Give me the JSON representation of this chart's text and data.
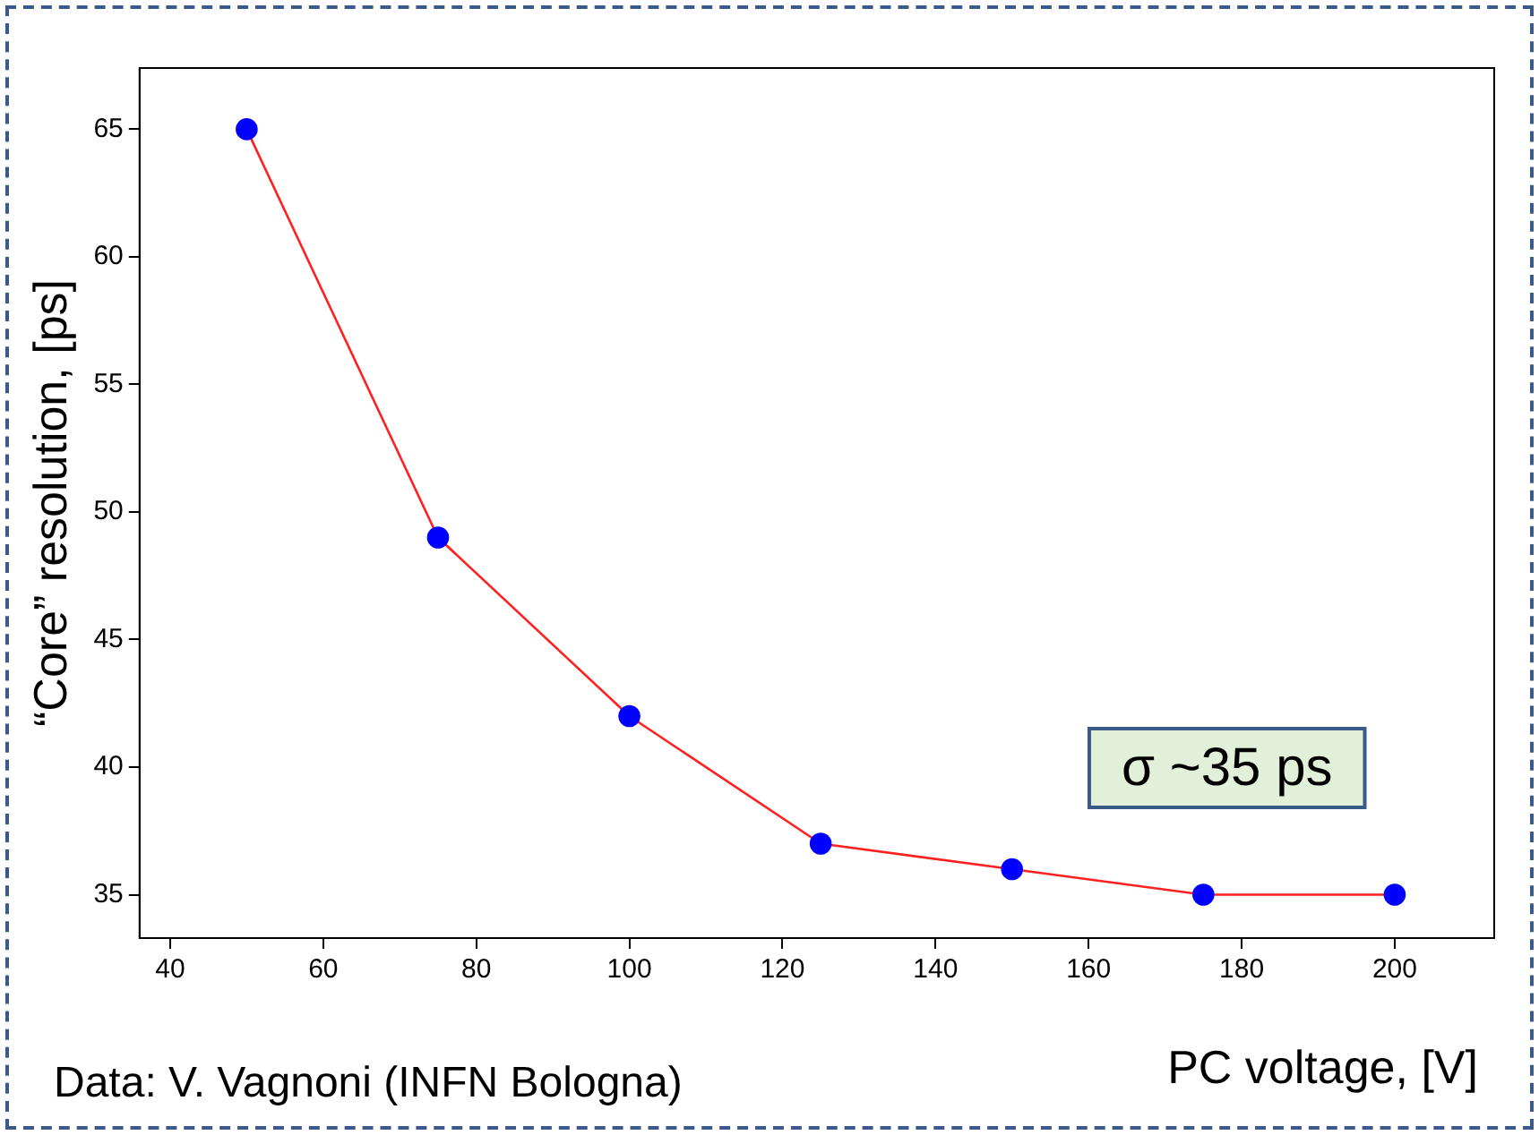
{
  "chart_data": {
    "type": "line",
    "xlabel": "PC voltage, [V]",
    "ylabel": "“Core” resolution, [ps]",
    "x": [
      50,
      75,
      100,
      125,
      150,
      175,
      200
    ],
    "series": [
      {
        "color": "#ff2020",
        "colors": [
          "#0000ff",
          "#0000ff",
          "#0000ff",
          "#0000ff",
          "#0000ff",
          "#0000ff",
          "#0000ff"
        ],
        "values": [
          65,
          49,
          42,
          37,
          36,
          35,
          35
        ]
      }
    ],
    "marker": "circle",
    "xlim": [
      36,
      213
    ],
    "xticks": [
      40,
      60,
      80,
      100,
      120,
      140,
      160,
      180,
      200
    ],
    "ylim": [
      33.3,
      67.4
    ],
    "yticks": [
      35,
      40,
      45,
      50,
      55,
      60,
      65
    ],
    "grid": false,
    "legend": false,
    "annotations": [
      "σ ~35 ps",
      "Data: V. Vagnoni (INFN Bologna)"
    ]
  }
}
